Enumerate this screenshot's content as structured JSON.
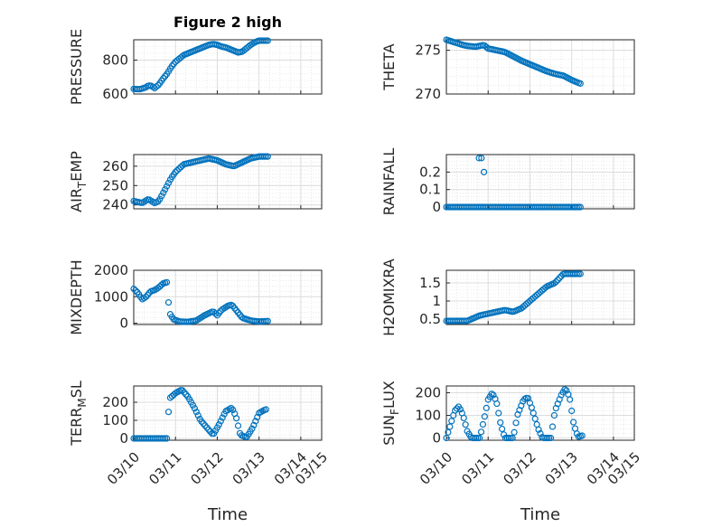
{
  "figure": {
    "title": "Figure 2 high",
    "marker_color": "#0072BD"
  },
  "chart_data": [
    {
      "type": "scatter",
      "ylabel": "PRESSURE",
      "title": "Figure 2 high",
      "xlim": [
        "03/10",
        "03/14.5"
      ],
      "ylim": [
        600,
        920
      ],
      "yticks": [
        600,
        800
      ],
      "show_xticklabels": false,
      "xticks": [
        "03/11",
        "03/12",
        "03/13",
        "03/14"
      ],
      "grid": true,
      "minor_grid": true,
      "anchors": [
        [
          0,
          630
        ],
        [
          0.15,
          628
        ],
        [
          0.3,
          640
        ],
        [
          0.35,
          650
        ],
        [
          0.42,
          648
        ],
        [
          0.5,
          635
        ],
        [
          0.55,
          645
        ],
        [
          0.6,
          655
        ],
        [
          0.7,
          690
        ],
        [
          0.8,
          720
        ],
        [
          0.9,
          760
        ],
        [
          1.0,
          790
        ],
        [
          1.1,
          810
        ],
        [
          1.2,
          830
        ],
        [
          1.3,
          840
        ],
        [
          1.4,
          850
        ],
        [
          1.5,
          860
        ],
        [
          1.6,
          870
        ],
        [
          1.7,
          880
        ],
        [
          1.8,
          890
        ],
        [
          1.9,
          895
        ],
        [
          2.0,
          890
        ],
        [
          2.1,
          880
        ],
        [
          2.2,
          875
        ],
        [
          2.3,
          865
        ],
        [
          2.4,
          855
        ],
        [
          2.5,
          845
        ],
        [
          2.6,
          850
        ],
        [
          2.7,
          870
        ],
        [
          2.8,
          890
        ],
        [
          2.9,
          905
        ],
        [
          3.0,
          915
        ],
        [
          3.2,
          915
        ]
      ]
    },
    {
      "type": "scatter",
      "ylabel": "THETA",
      "xlim": [
        "03/10",
        "03/14.5"
      ],
      "ylim": [
        270,
        276.2
      ],
      "yticks": [
        270,
        275
      ],
      "show_xticklabels": false,
      "xticks": [
        "03/11",
        "03/12",
        "03/13",
        "03/14"
      ],
      "grid": true,
      "minor_grid": true,
      "anchors": [
        [
          0,
          276.2
        ],
        [
          0.2,
          275.9
        ],
        [
          0.4,
          275.6
        ],
        [
          0.5,
          275.5
        ],
        [
          0.7,
          275.4
        ],
        [
          0.9,
          275.6
        ],
        [
          1.0,
          275.2
        ],
        [
          1.2,
          275.0
        ],
        [
          1.4,
          274.8
        ],
        [
          1.6,
          274.3
        ],
        [
          1.8,
          273.8
        ],
        [
          2.0,
          273.4
        ],
        [
          2.2,
          273.0
        ],
        [
          2.4,
          272.6
        ],
        [
          2.6,
          272.3
        ],
        [
          2.8,
          272.1
        ],
        [
          3.0,
          271.6
        ],
        [
          3.2,
          271.2
        ]
      ]
    },
    {
      "type": "scatter",
      "ylabel": "AIR_TEMP",
      "xlim": [
        "03/10",
        "03/14.5"
      ],
      "ylim": [
        238,
        266
      ],
      "yticks": [
        240,
        250,
        260
      ],
      "show_xticklabels": false,
      "xticks": [
        "03/11",
        "03/12",
        "03/13",
        "03/14"
      ],
      "grid": true,
      "minor_grid": true,
      "anchors": [
        [
          0,
          242
        ],
        [
          0.2,
          241
        ],
        [
          0.35,
          243
        ],
        [
          0.5,
          241
        ],
        [
          0.6,
          242
        ],
        [
          0.7,
          246
        ],
        [
          0.8,
          250
        ],
        [
          0.9,
          254
        ],
        [
          1.0,
          257
        ],
        [
          1.1,
          259
        ],
        [
          1.2,
          261
        ],
        [
          1.4,
          262
        ],
        [
          1.6,
          263
        ],
        [
          1.8,
          264
        ],
        [
          2.0,
          263
        ],
        [
          2.2,
          261
        ],
        [
          2.4,
          260
        ],
        [
          2.6,
          262
        ],
        [
          2.8,
          264
        ],
        [
          3.0,
          265
        ],
        [
          3.2,
          265
        ]
      ]
    },
    {
      "type": "scatter",
      "ylabel": "RAINFALL",
      "xlim": [
        "03/10",
        "03/14.5"
      ],
      "ylim": [
        -0.01,
        0.3
      ],
      "yticks": [
        0,
        0.1,
        0.2
      ],
      "show_xticklabels": false,
      "xticks": [
        "03/11",
        "03/12",
        "03/13",
        "03/14"
      ],
      "grid": true,
      "minor_grid": true,
      "anchors": [
        [
          0,
          0
        ],
        [
          3.2,
          0
        ]
      ],
      "extra_points": [
        [
          0.78,
          0.28
        ],
        [
          0.84,
          0.28
        ],
        [
          0.9,
          0.2
        ]
      ]
    },
    {
      "type": "scatter",
      "ylabel": "MIXDEPTH",
      "xlim": [
        "03/10",
        "03/14.5"
      ],
      "ylim": [
        -50,
        2000
      ],
      "yticks": [
        0,
        1000,
        2000
      ],
      "show_xticklabels": false,
      "xticks": [
        "03/11",
        "03/12",
        "03/13",
        "03/14"
      ],
      "grid": true,
      "minor_grid": true,
      "anchors": [
        [
          0,
          1300
        ],
        [
          0.1,
          1150
        ],
        [
          0.2,
          900
        ],
        [
          0.3,
          1000
        ],
        [
          0.4,
          1200
        ],
        [
          0.5,
          1250
        ],
        [
          0.6,
          1350
        ],
        [
          0.7,
          1500
        ],
        [
          0.8,
          1550
        ],
        [
          0.85,
          400
        ],
        [
          0.95,
          150
        ],
        [
          1.1,
          60
        ],
        [
          1.3,
          50
        ],
        [
          1.5,
          100
        ],
        [
          1.7,
          300
        ],
        [
          1.9,
          450
        ],
        [
          2.0,
          300
        ],
        [
          2.1,
          500
        ],
        [
          2.25,
          650
        ],
        [
          2.35,
          700
        ],
        [
          2.45,
          500
        ],
        [
          2.6,
          200
        ],
        [
          2.8,
          100
        ],
        [
          3.0,
          60
        ],
        [
          3.2,
          80
        ]
      ]
    },
    {
      "type": "scatter",
      "ylabel": "H2OMIXRA",
      "xlim": [
        "03/10",
        "03/14.5"
      ],
      "ylim": [
        0.35,
        1.85
      ],
      "yticks": [
        0.5,
        1,
        1.5
      ],
      "show_xticklabels": false,
      "xticks": [
        "03/11",
        "03/12",
        "03/13",
        "03/14"
      ],
      "grid": true,
      "minor_grid": true,
      "anchors": [
        [
          0,
          0.45
        ],
        [
          0.5,
          0.45
        ],
        [
          0.8,
          0.6
        ],
        [
          1.0,
          0.65
        ],
        [
          1.2,
          0.7
        ],
        [
          1.4,
          0.75
        ],
        [
          1.6,
          0.7
        ],
        [
          1.8,
          0.8
        ],
        [
          2.0,
          1.0
        ],
        [
          2.2,
          1.2
        ],
        [
          2.4,
          1.4
        ],
        [
          2.6,
          1.5
        ],
        [
          2.8,
          1.75
        ],
        [
          3.0,
          1.75
        ],
        [
          3.2,
          1.75
        ]
      ]
    },
    {
      "type": "scatter",
      "ylabel": "TERR_MSL",
      "xlim": [
        "03/10",
        "03/14.5"
      ],
      "ylim": [
        -10,
        290
      ],
      "yticks": [
        0,
        100,
        200
      ],
      "show_xticklabels": true,
      "xticks": [
        "03/10",
        "03/11",
        "03/12",
        "03/13",
        "03/14",
        "03/15"
      ],
      "xlabel": "Time",
      "grid": true,
      "minor_grid": true,
      "anchors": [
        [
          0,
          0
        ],
        [
          0.8,
          0
        ],
        [
          0.85,
          220
        ],
        [
          1.0,
          250
        ],
        [
          1.15,
          270
        ],
        [
          1.3,
          230
        ],
        [
          1.45,
          170
        ],
        [
          1.6,
          100
        ],
        [
          1.75,
          60
        ],
        [
          1.9,
          20
        ],
        [
          2.05,
          80
        ],
        [
          2.2,
          150
        ],
        [
          2.35,
          170
        ],
        [
          2.45,
          120
        ],
        [
          2.55,
          20
        ],
        [
          2.7,
          5
        ],
        [
          2.85,
          60
        ],
        [
          3.0,
          140
        ],
        [
          3.15,
          160
        ]
      ]
    },
    {
      "type": "scatter",
      "ylabel": "SUN_FLUX",
      "xlim": [
        "03/10",
        "03/14.5"
      ],
      "ylim": [
        -10,
        230
      ],
      "yticks": [
        0,
        100,
        200
      ],
      "show_xticklabels": true,
      "xticks": [
        "03/10",
        "03/11",
        "03/12",
        "03/13",
        "03/14",
        "03/15"
      ],
      "xlabel": "Time",
      "grid": true,
      "minor_grid": true,
      "anchors": [
        [
          0,
          0
        ],
        [
          0.1,
          60
        ],
        [
          0.2,
          120
        ],
        [
          0.3,
          140
        ],
        [
          0.4,
          100
        ],
        [
          0.5,
          30
        ],
        [
          0.6,
          0
        ],
        [
          0.8,
          0
        ],
        [
          0.9,
          80
        ],
        [
          1.0,
          170
        ],
        [
          1.1,
          200
        ],
        [
          1.2,
          160
        ],
        [
          1.3,
          60
        ],
        [
          1.4,
          0
        ],
        [
          1.6,
          0
        ],
        [
          1.7,
          100
        ],
        [
          1.85,
          170
        ],
        [
          1.95,
          180
        ],
        [
          2.05,
          130
        ],
        [
          2.2,
          40
        ],
        [
          2.3,
          0
        ],
        [
          2.5,
          0
        ],
        [
          2.6,
          120
        ],
        [
          2.75,
          190
        ],
        [
          2.85,
          220
        ],
        [
          2.95,
          180
        ],
        [
          3.05,
          60
        ],
        [
          3.15,
          5
        ],
        [
          3.25,
          10
        ]
      ]
    }
  ]
}
